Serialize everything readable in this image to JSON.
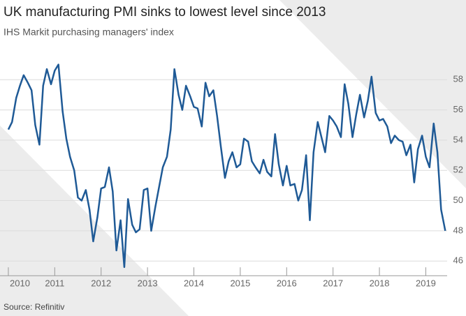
{
  "chart_data": {
    "type": "line",
    "title": "UK manufacturing PMI sinks to lowest level since 2013",
    "subtitle": "IHS Markit purchasing managers' index",
    "source": "Source: Refinitiv",
    "x": [
      2010.0,
      2010.08,
      2010.17,
      2010.25,
      2010.33,
      2010.42,
      2010.5,
      2010.58,
      2010.67,
      2010.75,
      2010.83,
      2010.92,
      2011.0,
      2011.08,
      2011.17,
      2011.25,
      2011.33,
      2011.42,
      2011.5,
      2011.58,
      2011.67,
      2011.75,
      2011.83,
      2011.92,
      2012.0,
      2012.08,
      2012.17,
      2012.25,
      2012.33,
      2012.42,
      2012.5,
      2012.58,
      2012.67,
      2012.75,
      2012.83,
      2012.92,
      2013.0,
      2013.08,
      2013.17,
      2013.25,
      2013.33,
      2013.42,
      2013.5,
      2013.58,
      2013.67,
      2013.75,
      2013.83,
      2013.92,
      2014.0,
      2014.08,
      2014.17,
      2014.25,
      2014.33,
      2014.42,
      2014.5,
      2014.58,
      2014.67,
      2014.75,
      2014.83,
      2014.92,
      2015.0,
      2015.08,
      2015.17,
      2015.25,
      2015.33,
      2015.42,
      2015.5,
      2015.58,
      2015.67,
      2015.75,
      2015.83,
      2015.92,
      2016.0,
      2016.08,
      2016.17,
      2016.25,
      2016.33,
      2016.42,
      2016.5,
      2016.58,
      2016.67,
      2016.75,
      2016.83,
      2016.92,
      2017.0,
      2017.08,
      2017.17,
      2017.25,
      2017.33,
      2017.42,
      2017.5,
      2017.58,
      2017.67,
      2017.75,
      2017.83,
      2017.92,
      2018.0,
      2018.08,
      2018.17,
      2018.25,
      2018.33,
      2018.42,
      2018.5,
      2018.58,
      2018.67,
      2018.75,
      2018.83,
      2018.92,
      2019.0,
      2019.08,
      2019.17,
      2019.25,
      2019.33,
      2019.42
    ],
    "series": [
      {
        "name": "PMI",
        "color": "#1f5a96",
        "values": [
          54.7,
          55.2,
          56.8,
          57.6,
          58.3,
          57.8,
          57.3,
          55.0,
          53.7,
          57.6,
          58.7,
          57.7,
          58.6,
          59.0,
          55.9,
          54.1,
          52.9,
          52.0,
          50.2,
          50.0,
          50.7,
          49.4,
          47.3,
          48.9,
          50.8,
          50.9,
          52.2,
          50.6,
          46.7,
          48.7,
          45.6,
          50.1,
          48.4,
          47.9,
          48.1,
          50.7,
          50.8,
          48.0,
          49.6,
          50.9,
          52.2,
          52.9,
          54.7,
          58.7,
          57.0,
          56.0,
          57.6,
          56.9,
          56.2,
          56.1,
          54.9,
          57.8,
          56.9,
          57.3,
          55.6,
          53.6,
          51.5,
          52.6,
          53.2,
          52.2,
          52.4,
          54.1,
          53.9,
          52.6,
          52.2,
          51.8,
          52.7,
          51.9,
          51.6,
          54.4,
          52.4,
          51.0,
          52.3,
          51.0,
          51.1,
          50.0,
          50.7,
          53.0,
          48.7,
          53.2,
          55.2,
          54.2,
          53.2,
          55.6,
          55.3,
          54.9,
          54.2,
          57.7,
          56.4,
          54.2,
          55.7,
          57.0,
          55.5,
          56.6,
          58.2,
          55.8,
          55.3,
          55.4,
          54.9,
          53.8,
          54.3,
          54.0,
          53.9,
          53.0,
          53.7,
          51.2,
          53.4,
          54.3,
          52.9,
          52.2,
          55.1,
          53.2,
          49.4,
          48.0
        ]
      }
    ],
    "xlim": [
      2009.82,
      2019.46
    ],
    "xticks": [
      2010,
      2011,
      2012,
      2013,
      2014,
      2015,
      2016,
      2017,
      2018,
      2019
    ],
    "ylim": [
      45.03,
      59.11
    ],
    "yticks": [
      46,
      48,
      50,
      52,
      54,
      56,
      58
    ],
    "grid": true
  }
}
